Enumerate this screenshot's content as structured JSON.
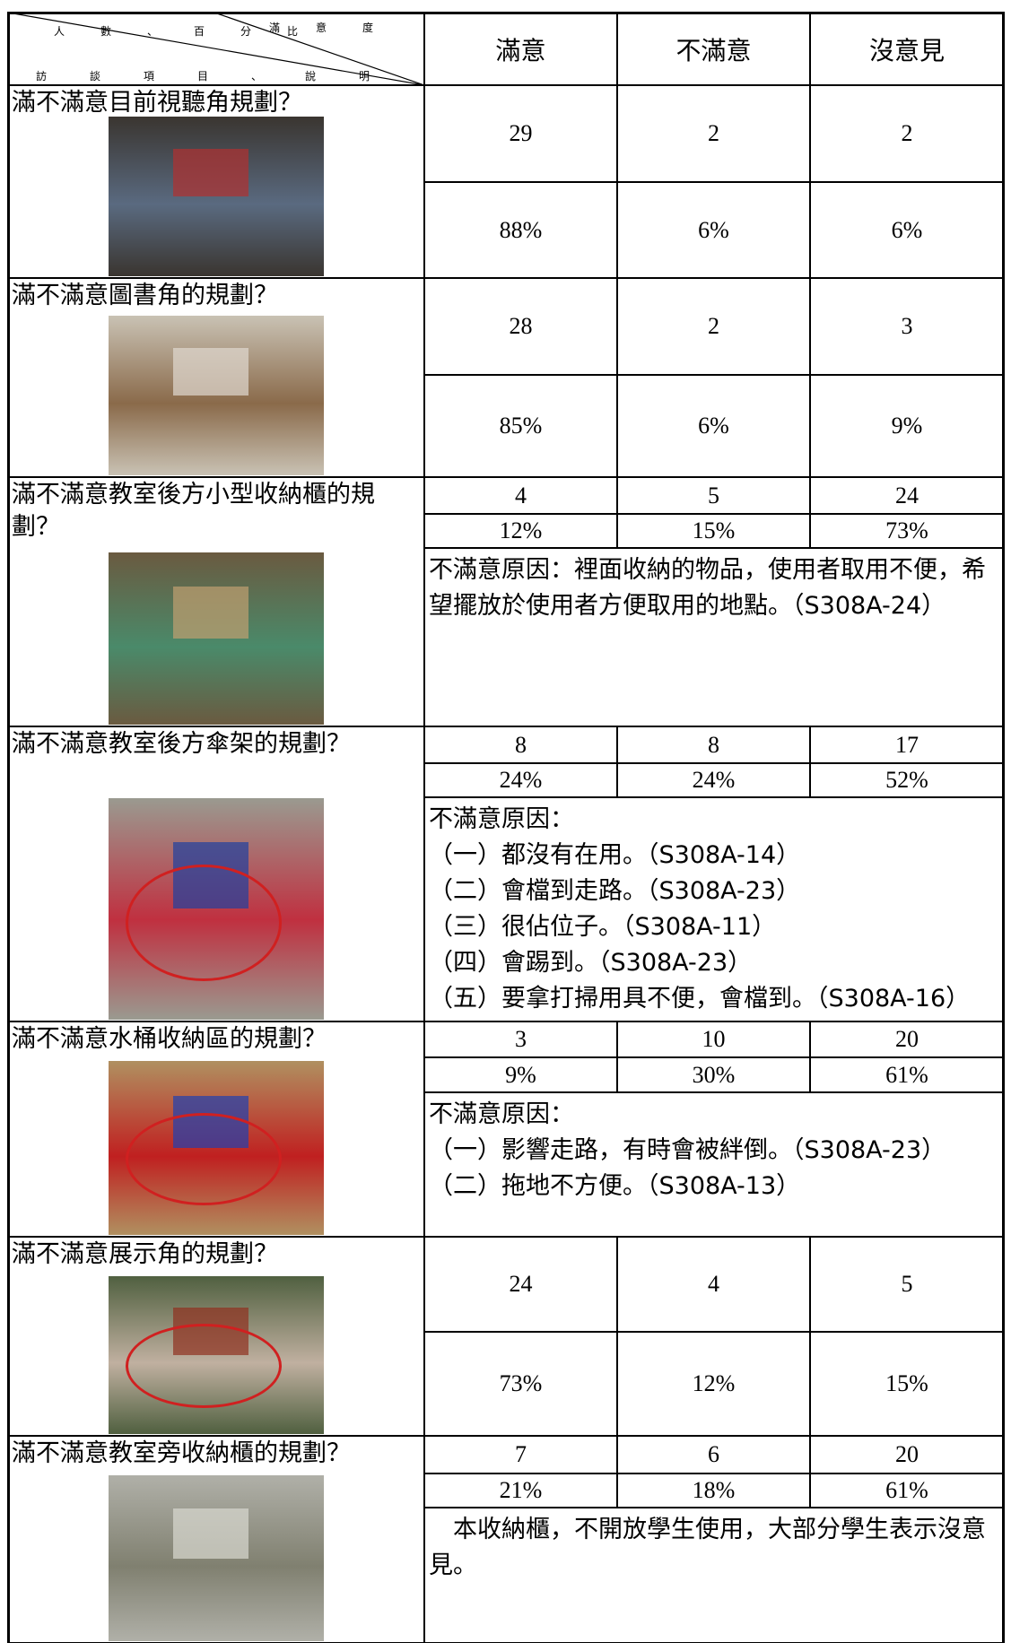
{
  "header": {
    "corner": {
      "satisfaction": "滿意度",
      "count_percent": "人數、百分比",
      "item_note": "訪談項目、說明"
    },
    "columns": [
      "滿意",
      "不滿意",
      "沒意見"
    ]
  },
  "items": [
    {
      "question": "滿不滿意目前視聽角規劃？",
      "counts": [
        29,
        2,
        2
      ],
      "percents": [
        "88%",
        "6%",
        "6%"
      ]
    },
    {
      "question": "滿不滿意圖書角的規劃？",
      "counts": [
        28,
        2,
        3
      ],
      "percents": [
        "85%",
        "6%",
        "9%"
      ]
    },
    {
      "question": "滿不滿意教室後方小型收納櫃的規劃？",
      "counts": [
        4,
        5,
        24
      ],
      "percents": [
        "12%",
        "15%",
        "73%"
      ],
      "reason": [
        "不滿意原因：裡面收納的物品，使用者取用不便，希望擺放於使用者方便取用的地點。（S308A-24）"
      ]
    },
    {
      "question": "滿不滿意教室後方傘架的規劃？",
      "counts": [
        8,
        8,
        17
      ],
      "percents": [
        "24%",
        "24%",
        "52%"
      ],
      "reason": [
        "不滿意原因：",
        "（一）都沒有在用。（S308A-14）",
        "（二）會檔到走路。（S308A-23）",
        "（三）很佔位子。（S308A-11）",
        "（四）會踢到。（S308A-23）",
        "（五）要拿打掃用具不便，會檔到。（S308A-16）"
      ]
    },
    {
      "question": "滿不滿意水桶收納區的規劃？",
      "counts": [
        3,
        10,
        20
      ],
      "percents": [
        "9%",
        "30%",
        "61%"
      ],
      "reason": [
        "不滿意原因：",
        "（一）影響走路，有時會被絆倒。（S308A-23）",
        "（二）拖地不方便。（S308A-13）"
      ]
    },
    {
      "question": "滿不滿意展示角的規劃？",
      "counts": [
        24,
        4,
        5
      ],
      "percents": [
        "73%",
        "12%",
        "15%"
      ]
    },
    {
      "question": "滿不滿意教室旁收納櫃的規劃？",
      "counts": [
        7,
        6,
        20
      ],
      "percents": [
        "21%",
        "18%",
        "61%"
      ],
      "reason": [
        "　本收納櫃，不開放學生使用，大部分學生表示沒意見。"
      ]
    }
  ]
}
